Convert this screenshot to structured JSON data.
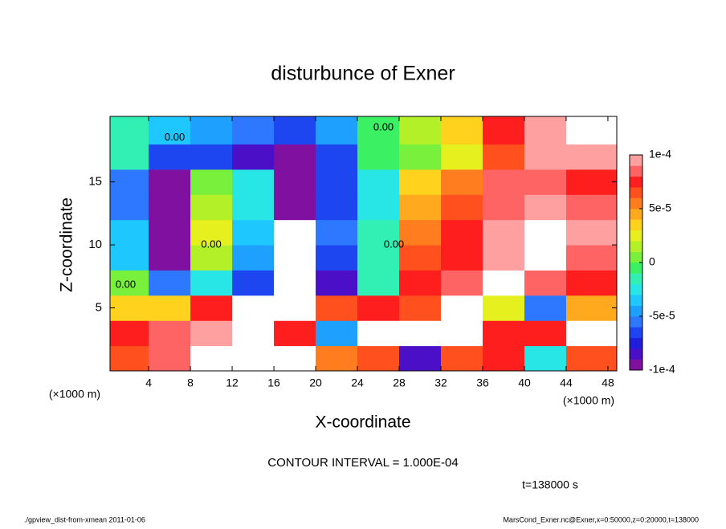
{
  "chart_data": {
    "type": "heatmap",
    "title": "disturbunce of Exner",
    "x_label": "X-coordinate",
    "y_label": "Z-coordinate",
    "x_unit_label": "(×1000 m)",
    "y_unit_label": "(×1000 m)",
    "xlim": [
      0.3,
      48.85
    ],
    "ylim": [
      0,
      20.2
    ],
    "xticks": [
      4,
      8,
      12,
      16,
      20,
      24,
      28,
      32,
      36,
      40,
      44,
      48
    ],
    "yticks": [
      5,
      10,
      15
    ],
    "x": [
      2,
      6,
      10,
      14,
      18,
      22,
      26,
      30,
      34,
      38,
      42,
      46
    ],
    "y": [
      1,
      3,
      5,
      7,
      9,
      11,
      13,
      15,
      17,
      19
    ],
    "z": [
      [
        6e-05,
        8e-05,
        0.00013,
        -0.0002,
        0.00013,
        5e-05,
        6e-05,
        -8e-05,
        6e-05,
        7e-05,
        -3e-05,
        6e-05
      ],
      [
        7e-05,
        8e-05,
        9e-05,
        -0.0002,
        7e-05,
        -5e-05,
        0.00012,
        -0.00013,
        0.00013,
        7e-05,
        7e-05,
        0.00011
      ],
      [
        3e-05,
        3e-05,
        7e-05,
        -0.00013,
        -0.00012,
        6e-05,
        7e-05,
        6e-05,
        0.00012,
        2e-05,
        -6e-05,
        4e-05
      ],
      [
        0,
        -6e-05,
        -3e-05,
        -7e-05,
        -0.00015,
        -8e-05,
        -2e-05,
        7e-05,
        8e-05,
        0.00012,
        8e-05,
        7e-05
      ],
      [
        -4e-05,
        -0.0001,
        1e-05,
        -5e-05,
        -0.00014,
        -7e-05,
        -2e-05,
        6e-05,
        7e-05,
        0.0001,
        0.00011,
        8e-05
      ],
      [
        -4e-05,
        -0.0001,
        2e-05,
        -4e-05,
        -0.00013,
        -6e-05,
        -2e-05,
        5e-05,
        7e-05,
        9e-05,
        0.00011,
        9e-05
      ],
      [
        -6e-05,
        -9e-05,
        1e-05,
        -3e-05,
        -0.0001,
        -7e-05,
        -3e-05,
        4e-05,
        6e-05,
        8e-05,
        9e-05,
        8e-05
      ],
      [
        -6e-05,
        -9e-05,
        0,
        -3e-05,
        -0.0001,
        -7e-05,
        -3e-05,
        3e-05,
        5e-05,
        8e-05,
        8e-05,
        7e-05
      ],
      [
        -2e-05,
        -7e-05,
        -7e-05,
        -8e-05,
        -9e-05,
        -7e-05,
        -1e-05,
        0,
        2e-05,
        6e-05,
        9e-05,
        9e-05
      ],
      [
        -2e-05,
        -4e-05,
        -5e-05,
        -6e-05,
        -7e-05,
        -5e-05,
        -1e-05,
        1e-05,
        3e-05,
        7e-05,
        0.0001,
        0.00011
      ]
    ],
    "clim": [
      -0.0001,
      0.0001
    ],
    "cticks": [
      {
        "value": 0.0001,
        "label": "1e-4"
      },
      {
        "value": 5e-05,
        "label": "5e-5"
      },
      0,
      {
        "value": -5e-05,
        "label": "-5e-5"
      },
      {
        "value": -0.0001,
        "label": "-1e-4"
      }
    ],
    "colors": [
      "#8010a0",
      "#4b0fc8",
      "#1e1edc",
      "#1e46f0",
      "#2d78ff",
      "#1ea0ff",
      "#1ec8ff",
      "#28e6e6",
      "#32f0b4",
      "#3cf064",
      "#78f03c",
      "#b4f028",
      "#e6f01e",
      "#ffd21e",
      "#ffaa1e",
      "#ff7d1e",
      "#ff501e",
      "#ff1e1e",
      "#ff6464",
      "#ffa0a0"
    ],
    "out_of_range_color": "#ffffff",
    "annotations": [
      {
        "text": "0.00",
        "x": 6.5,
        "y": 18.5
      },
      {
        "text": "0.00",
        "x": 26.5,
        "y": 19.3
      },
      {
        "text": "0.00",
        "x": 10,
        "y": 10
      },
      {
        "text": "0.00",
        "x": 27.5,
        "y": 10
      },
      {
        "text": "0.00",
        "x": 1.8,
        "y": 6.8
      }
    ],
    "contour_interval_label": "CONTOUR INTERVAL = 1.000E-04",
    "time_label": "t=138000 s"
  },
  "footer": {
    "left": "./gpview_dist-from-xmean  2011-01-06",
    "right": "MarsCond_Exner.nc@Exner,x=0:50000,z=0:20000,t=138000"
  }
}
